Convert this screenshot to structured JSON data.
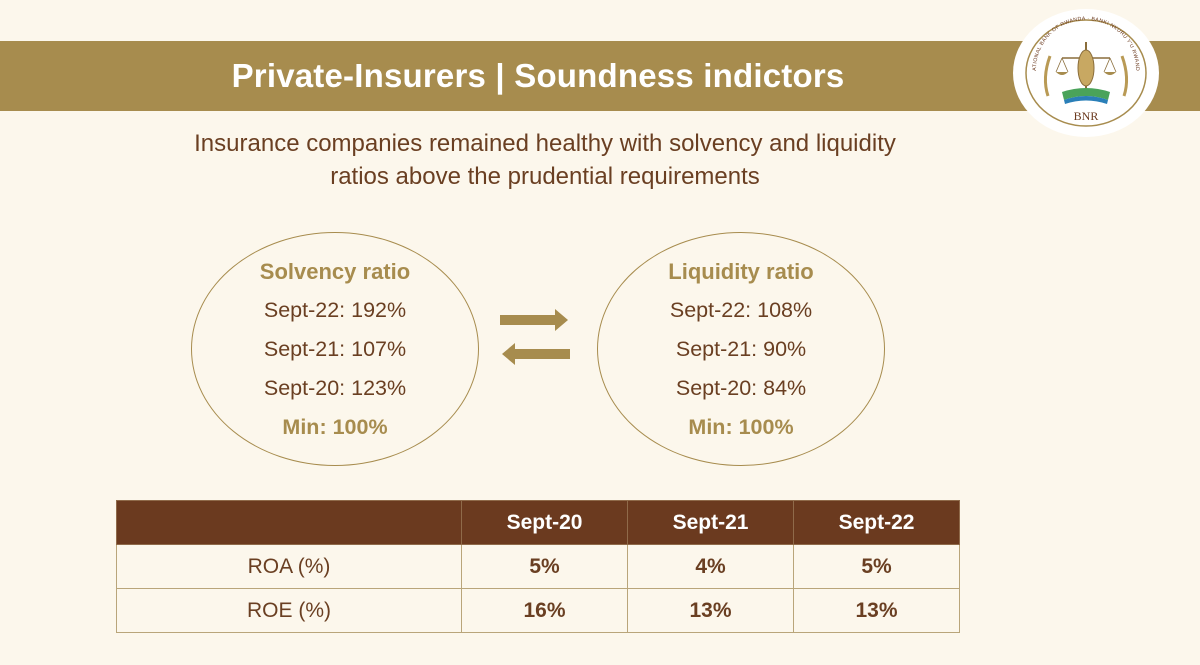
{
  "header": {
    "title": "Private-Insurers | Soundness indictors"
  },
  "logo": {
    "ring_text": "NATIONAL BANK OF RWANDA · BANKI NKURU Y'U RWANDA",
    "initials": "BNR"
  },
  "subtitle": {
    "line1": "Insurance companies remained healthy with solvency and liquidity",
    "line2": "ratios above the prudential requirements"
  },
  "solvency": {
    "title": "Solvency ratio",
    "rows": [
      "Sept-22: 192%",
      "Sept-21: 107%",
      "Sept-20: 123%"
    ],
    "min": "Min: 100%"
  },
  "liquidity": {
    "title": "Liquidity ratio",
    "rows": [
      "Sept-22: 108%",
      "Sept-21: 90%",
      "Sept-20: 84%"
    ],
    "min": "Min: 100%"
  },
  "table": {
    "headers": [
      "",
      "Sept-20",
      "Sept-21",
      "Sept-22"
    ],
    "rows": [
      {
        "label": "ROA (%)",
        "values": [
          "5%",
          "4%",
          "5%"
        ]
      },
      {
        "label": "ROE (%)",
        "values": [
          "16%",
          "13%",
          "13%"
        ]
      }
    ]
  },
  "colors": {
    "gold": "#a78c4e",
    "brown": "#6b3a1f",
    "background": "#fcf7ec",
    "text": "#6a3f22"
  }
}
